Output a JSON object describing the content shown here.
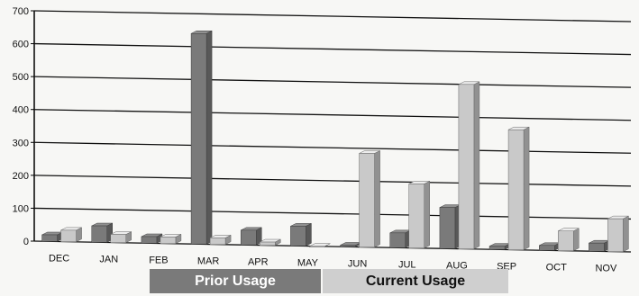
{
  "chart_data": {
    "type": "bar",
    "categories": [
      "DEC",
      "JAN",
      "FEB",
      "MAR",
      "APR",
      "MAY",
      "JUN",
      "JUL",
      "AUG",
      "SEP",
      "OCT",
      "NOV"
    ],
    "series": [
      {
        "name": "Prior Usage",
        "values": [
          20,
          50,
          20,
          640,
          45,
          60,
          5,
          45,
          125,
          10,
          15,
          25
        ],
        "color": "#7a7a7a"
      },
      {
        "name": "Current Usage",
        "values": [
          35,
          25,
          20,
          20,
          10,
          0,
          285,
          195,
          500,
          365,
          60,
          100
        ],
        "color": "#c9c9c9"
      }
    ],
    "yticks": [
      0,
      100,
      200,
      300,
      400,
      500,
      600,
      700
    ],
    "ylim": [
      0,
      700
    ],
    "grid": true,
    "legend": "bottom"
  },
  "legend": {
    "prior_label": "Prior Usage",
    "current_label": "Current Usage"
  }
}
